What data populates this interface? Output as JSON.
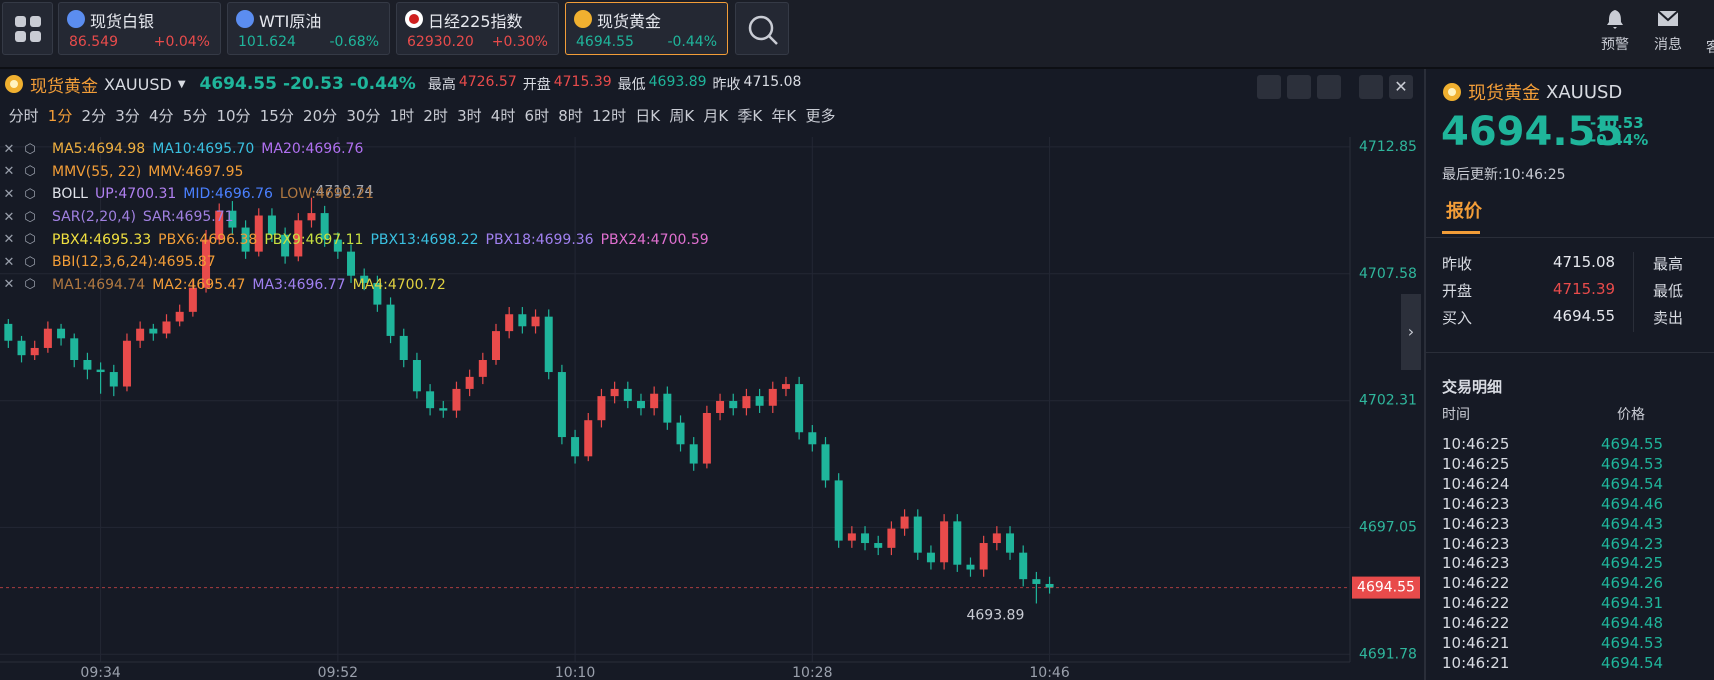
{
  "top_bar": {
    "quotes": [
      {
        "name": "现货白银",
        "price": "86.549",
        "change": "+0.04%",
        "color": "#e84b4b"
      },
      {
        "name": "WTI原油",
        "price": "101.624",
        "change": "-0.68%",
        "color": "#1fb59b"
      },
      {
        "name": "日经225指数",
        "price": "62930.20",
        "change": "+0.30%",
        "color": "#e84b4b"
      },
      {
        "name": "现货黄金",
        "price": "4694.55",
        "change": "-0.44%",
        "color": "#1fb59b",
        "selected": true
      }
    ],
    "actions": [
      "预警",
      "消息",
      "客"
    ]
  },
  "chart_header": {
    "name": "现货黄金",
    "symbol": "XAUUSD",
    "price": "4694.55",
    "change": "-20.53",
    "pct": "-0.44%",
    "stats": [
      {
        "label": "最高",
        "value": "4726.57",
        "color": "#e84b4b"
      },
      {
        "label": "开盘",
        "value": "4715.39",
        "color": "#e84b4b"
      },
      {
        "label": "最低",
        "value": "4693.89",
        "color": "#1fb59b"
      },
      {
        "label": "昨收",
        "value": "4715.08",
        "color": "#d8dbe2"
      }
    ]
  },
  "periods": {
    "items": [
      "分时",
      "1分",
      "2分",
      "3分",
      "4分",
      "5分",
      "10分",
      "15分",
      "20分",
      "30分",
      "1时",
      "2时",
      "3时",
      "4时",
      "6时",
      "8时",
      "12时",
      "日K",
      "周K",
      "月K",
      "季K",
      "年K",
      "更多"
    ],
    "selected": 1
  },
  "indicators": [
    [
      {
        "text": "MA5:4694.98",
        "color": "#f0b040"
      },
      {
        "text": "MA10:4695.70",
        "color": "#3ac0e0"
      },
      {
        "text": "MA20:4696.76",
        "color": "#b070f0"
      }
    ],
    [
      {
        "text": "MMV(55, 22)",
        "color": "#f29d38"
      },
      {
        "text": "MMV:4697.95",
        "color": "#f29d38"
      }
    ],
    [
      {
        "text": "BOLL",
        "color": "#e0e3ea"
      },
      {
        "text": "UP:4700.31",
        "color": "#b080f0"
      },
      {
        "text": "MID:4696.76",
        "color": "#4a80ff"
      },
      {
        "text": "LOW:4692.21",
        "color": "#b07840"
      }
    ],
    [
      {
        "text": "SAR(2,20,4)",
        "color": "#a080e0"
      },
      {
        "text": "SAR:4695.71",
        "color": "#a080e0"
      }
    ],
    [
      {
        "text": "PBX4:4695.33",
        "color": "#f0e040"
      },
      {
        "text": "PBX6:4696.38",
        "color": "#f29d38"
      },
      {
        "text": "PBX9:4697.11",
        "color": "#c8e040"
      },
      {
        "text": "PBX13:4698.22",
        "color": "#3ac0e0"
      },
      {
        "text": "PBX18:4699.36",
        "color": "#a080f0"
      },
      {
        "text": "PBX24:4700.59",
        "color": "#e070d0"
      }
    ],
    [
      {
        "text": "BBI(12,3,6,24):4695.87",
        "color": "#f29d38"
      }
    ],
    [
      {
        "text": "MA1:4694.74",
        "color": "#b07840"
      },
      {
        "text": "MA2:4695.47",
        "color": "#f29d38"
      },
      {
        "text": "MA3:4696.77",
        "color": "#a080f0"
      },
      {
        "text": "MA4:4700.72",
        "color": "#e0d040"
      }
    ]
  ],
  "chart_data": {
    "type": "candlestick",
    "categories": [
      null,
      null,
      null,
      null,
      null,
      null,
      null,
      null,
      "09:34",
      null,
      null,
      null,
      null,
      null,
      null,
      null,
      null,
      null,
      null,
      null,
      null,
      null,
      null,
      null,
      null,
      null,
      "09:52",
      null,
      null,
      null,
      null,
      null,
      null,
      null,
      null,
      null,
      null,
      null,
      null,
      null,
      null,
      null,
      null,
      null,
      "10:10",
      null,
      null,
      null,
      null,
      null,
      null,
      null,
      null,
      null,
      null,
      null,
      null,
      null,
      null,
      null,
      null,
      null,
      "10:28",
      null,
      null,
      null,
      null,
      null,
      null,
      null,
      null,
      null,
      null,
      null,
      null,
      null,
      null,
      null,
      null,
      null,
      "10:46"
    ],
    "open": [
      4705.2,
      4705.5,
      4704.8,
      4704.2,
      4704.5,
      4705.3,
      4704.9,
      4704.0,
      4703.6,
      4703.5,
      4702.9,
      4704.8,
      4705.3,
      4705.1,
      4705.6,
      4706.0,
      4707.0,
      4709.0,
      4710.2,
      4709.5,
      4708.5,
      4710.0,
      4709.2,
      4708.3,
      4709.8,
      4710.1,
      4709.0,
      4708.5,
      4707.5,
      4707.2,
      4706.3,
      4705.0,
      4704.0,
      4702.7,
      4702.0,
      4701.9,
      4702.8,
      4703.3,
      4704.0,
      4705.2,
      4705.9,
      4705.4,
      4705.8,
      4703.5,
      4700.8,
      4700.0,
      4701.5,
      4702.5,
      4702.8,
      4702.3,
      4702.0,
      4702.6,
      4701.4,
      4700.5,
      4699.7,
      4701.8,
      4702.3,
      4702.0,
      4702.5,
      4702.1,
      4702.8,
      4703.0,
      4701.0,
      4700.5,
      4699.0,
      4696.5,
      4696.8,
      4696.4,
      4696.2,
      4697.0,
      4697.5,
      4696.0,
      4695.6,
      4697.3,
      4695.5,
      4695.3,
      4696.4,
      4696.8,
      4696.0,
      4694.9,
      4694.7
    ],
    "high": [
      4705.8,
      4705.7,
      4705.0,
      4704.8,
      4705.6,
      4705.5,
      4705.1,
      4704.3,
      4703.9,
      4703.8,
      4705.1,
      4705.6,
      4705.5,
      4705.9,
      4706.3,
      4707.3,
      4709.4,
      4710.5,
      4710.6,
      4709.8,
      4710.3,
      4710.3,
      4709.5,
      4710.1,
      4710.74,
      4710.4,
      4709.3,
      4708.8,
      4707.8,
      4707.5,
      4706.6,
      4705.3,
      4704.3,
      4703.0,
      4702.3,
      4703.1,
      4703.6,
      4704.3,
      4705.5,
      4706.2,
      4706.2,
      4706.1,
      4706.1,
      4703.8,
      4701.1,
      4701.8,
      4702.8,
      4703.1,
      4703.1,
      4702.6,
      4702.9,
      4702.9,
      4701.7,
      4700.8,
      4702.1,
      4702.6,
      4702.6,
      4702.8,
      4702.8,
      4703.1,
      4703.3,
      4703.3,
      4701.3,
      4700.8,
      4699.3,
      4697.1,
      4697.1,
      4696.7,
      4697.3,
      4697.8,
      4697.8,
      4696.3,
      4697.6,
      4697.6,
      4695.8,
      4696.7,
      4697.1,
      4697.1,
      4696.3,
      4695.2,
      4695.0
    ],
    "low": [
      4704.9,
      4704.5,
      4703.9,
      4704.0,
      4704.3,
      4704.6,
      4703.7,
      4703.2,
      4702.6,
      4702.5,
      4702.7,
      4704.5,
      4704.8,
      4704.9,
      4705.4,
      4705.8,
      4706.8,
      4708.8,
      4709.2,
      4708.2,
      4708.3,
      4708.9,
      4708.0,
      4708.1,
      4709.5,
      4708.7,
      4708.2,
      4707.2,
      4706.9,
      4706.0,
      4704.7,
      4703.7,
      4702.4,
      4701.7,
      4701.6,
      4701.6,
      4702.5,
      4703.0,
      4703.8,
      4704.9,
      4705.1,
      4705.1,
      4703.2,
      4700.5,
      4699.7,
      4699.8,
      4701.2,
      4702.2,
      4702.0,
      4701.7,
      4701.7,
      4701.1,
      4700.2,
      4699.4,
      4699.5,
      4701.5,
      4701.7,
      4701.7,
      4701.8,
      4701.8,
      4702.5,
      4700.7,
      4700.2,
      4698.7,
      4696.2,
      4696.2,
      4696.1,
      4695.9,
      4695.9,
      4696.7,
      4695.7,
      4695.3,
      4695.3,
      4695.2,
      4695.0,
      4695.0,
      4696.1,
      4695.7,
      4694.6,
      4693.89,
      4694.3
    ],
    "close": [
      4705.5,
      4704.8,
      4704.2,
      4704.5,
      4705.3,
      4704.9,
      4704.0,
      4703.6,
      4703.5,
      4702.9,
      4704.8,
      4705.3,
      4705.1,
      4705.6,
      4706.0,
      4707.0,
      4709.0,
      4710.2,
      4709.5,
      4708.5,
      4710.0,
      4709.2,
      4708.3,
      4709.8,
      4710.1,
      4709.0,
      4708.5,
      4707.5,
      4707.2,
      4706.3,
      4705.0,
      4704.0,
      4702.7,
      4702.0,
      4701.9,
      4702.8,
      4703.3,
      4704.0,
      4705.2,
      4705.9,
      4705.4,
      4705.8,
      4703.5,
      4700.8,
      4700.0,
      4701.5,
      4702.5,
      4702.8,
      4702.3,
      4702.0,
      4702.6,
      4701.4,
      4700.5,
      4699.7,
      4701.8,
      4702.3,
      4702.0,
      4702.5,
      4702.1,
      4702.8,
      4703.0,
      4701.0,
      4700.5,
      4699.0,
      4696.5,
      4696.8,
      4696.4,
      4696.2,
      4697.0,
      4697.5,
      4696.0,
      4695.6,
      4697.3,
      4695.5,
      4695.3,
      4696.4,
      4696.8,
      4696.0,
      4694.9,
      4694.7,
      4694.55
    ],
    "up_color": "#e84b4b",
    "down_color": "#1fb59b",
    "ylim": [
      4691.46,
      4713.26
    ],
    "yticks": [
      4691.78,
      4697.05,
      4702.31,
      4707.58,
      4712.85
    ],
    "grid": true
  },
  "side_panel": {
    "name": "现货黄金",
    "symbol": "XAUUSD",
    "price": "4694.55",
    "change": "-20.53",
    "pct": "-0.44%",
    "updated": "最后更新:10:46:25",
    "tab": "报价",
    "quote_rows": [
      [
        "昨收",
        "4715.08",
        "最高"
      ],
      [
        "开盘",
        "4715.39",
        "最低"
      ],
      [
        "买入",
        "4694.55",
        "卖出"
      ]
    ],
    "trades": {
      "title": "交易明细",
      "headers": [
        "时间",
        "价格"
      ],
      "rows": [
        [
          "10:46:25",
          "4694.55"
        ],
        [
          "10:46:25",
          "4694.53"
        ],
        [
          "10:46:24",
          "4694.54"
        ],
        [
          "10:46:23",
          "4694.46"
        ],
        [
          "10:46:23",
          "4694.43"
        ],
        [
          "10:46:23",
          "4694.23"
        ],
        [
          "10:46:23",
          "4694.25"
        ],
        [
          "10:46:22",
          "4694.26"
        ],
        [
          "10:46:22",
          "4694.31"
        ],
        [
          "10:46:22",
          "4694.48"
        ],
        [
          "10:46:21",
          "4694.53"
        ],
        [
          "10:46:21",
          "4694.54"
        ]
      ]
    }
  }
}
